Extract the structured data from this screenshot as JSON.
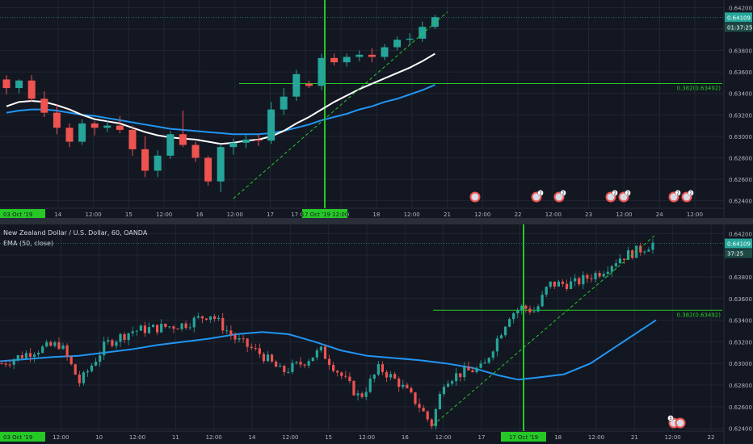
{
  "colors": {
    "background": "#131722",
    "grid": "#222632",
    "up": "#26a69a",
    "down": "#ef5350",
    "ema50": "#2196f3",
    "ema20": "#ffffff",
    "fib": "#26c826",
    "vertical_line": "#26c826",
    "trend_line": "#26c826",
    "axis_text": "#b2b5be",
    "price_tag": "#26a69a",
    "time_tag": "#26c826"
  },
  "legend": {
    "symbol": "New Zealand Dollar / U.S. Dollar, 60, OANDA",
    "indicator": "EMA (50, close)"
  },
  "chart_data": [
    {
      "type": "candlestick",
      "panel": "top",
      "title": "",
      "ylim": [
        0.6236,
        0.6424
      ],
      "y_ticks": [
        "0.64200",
        "0.64000",
        "0.63800",
        "0.63600",
        "0.63400",
        "0.63200",
        "0.63000",
        "0.62800",
        "0.62600",
        "0.62400"
      ],
      "x_ticks": [
        "03 Oct '19",
        "14",
        "12:00",
        "15",
        "12:00",
        "16",
        "12:00",
        "17",
        "17 Oct '19",
        "12:00",
        "18",
        "12:00",
        "21",
        "12:00",
        "22",
        "12:00",
        "23",
        "12:00",
        "24",
        "12:00"
      ],
      "last_price": "0.64109",
      "countdown": "01:37:25",
      "fib_label": "0.382(0.63492)",
      "fib_level": 0.63492,
      "vertical_line_label": "17 Oct '19 12:00",
      "event_badges": [
        "",
        "2",
        "2",
        "2",
        "2",
        "2",
        "2"
      ],
      "candles": [
        [
          0.6353,
          0.6357,
          0.6339,
          0.6345
        ],
        [
          0.6345,
          0.6353,
          0.634,
          0.6352
        ],
        [
          0.6352,
          0.6357,
          0.6332,
          0.6335
        ],
        [
          0.6335,
          0.6342,
          0.6318,
          0.6322
        ],
        [
          0.6322,
          0.633,
          0.6302,
          0.6308
        ],
        [
          0.6308,
          0.6312,
          0.629,
          0.6295
        ],
        [
          0.6295,
          0.6316,
          0.6292,
          0.6312
        ],
        [
          0.6312,
          0.6314,
          0.6301,
          0.6308
        ],
        [
          0.6308,
          0.6315,
          0.6304,
          0.631
        ],
        [
          0.631,
          0.6319,
          0.6303,
          0.6306
        ],
        [
          0.6306,
          0.631,
          0.6282,
          0.6288
        ],
        [
          0.6288,
          0.63,
          0.6262,
          0.6268
        ],
        [
          0.6268,
          0.6287,
          0.6262,
          0.6282
        ],
        [
          0.6282,
          0.6305,
          0.6279,
          0.6302
        ],
        [
          0.6302,
          0.6324,
          0.629,
          0.6292
        ],
        [
          0.6292,
          0.6295,
          0.6276,
          0.628
        ],
        [
          0.628,
          0.6282,
          0.6254,
          0.6258
        ],
        [
          0.6258,
          0.6293,
          0.6248,
          0.629
        ],
        [
          0.629,
          0.6298,
          0.6283,
          0.6294
        ],
        [
          0.6294,
          0.6301,
          0.6289,
          0.6297
        ],
        [
          0.6297,
          0.6302,
          0.6291,
          0.6296
        ],
        [
          0.6296,
          0.6332,
          0.6293,
          0.6325
        ],
        [
          0.6325,
          0.6345,
          0.632,
          0.6337
        ],
        [
          0.6337,
          0.6362,
          0.6333,
          0.6358
        ],
        [
          0.6349,
          0.6352,
          0.6345,
          0.6347
        ],
        [
          0.6347,
          0.6377,
          0.6343,
          0.6373
        ],
        [
          0.6373,
          0.6377,
          0.6366,
          0.6369
        ],
        [
          0.6369,
          0.6377,
          0.6365,
          0.6374
        ],
        [
          0.6374,
          0.638,
          0.637,
          0.6376
        ],
        [
          0.6376,
          0.6382,
          0.6369,
          0.6374
        ],
        [
          0.6374,
          0.6386,
          0.6371,
          0.6383
        ],
        [
          0.6383,
          0.6393,
          0.638,
          0.639
        ],
        [
          0.639,
          0.6396,
          0.6385,
          0.6391
        ],
        [
          0.6391,
          0.6407,
          0.6388,
          0.6402
        ],
        [
          0.6402,
          0.6413,
          0.64,
          0.6411
        ]
      ],
      "ema20": [
        0.6328,
        0.6332,
        0.6333,
        0.6332,
        0.6329,
        0.6325,
        0.632,
        0.6316,
        0.6314,
        0.6312,
        0.6308,
        0.6304,
        0.6301,
        0.6299,
        0.6298,
        0.6297,
        0.6295,
        0.6293,
        0.6294,
        0.6296,
        0.6297,
        0.63,
        0.6305,
        0.6312,
        0.6318,
        0.6325,
        0.6332,
        0.6338,
        0.6344,
        0.6349,
        0.6354,
        0.6359,
        0.6364,
        0.637,
        0.6377
      ],
      "ema50": [
        0.6322,
        0.6324,
        0.6325,
        0.6325,
        0.6324,
        0.6322,
        0.632,
        0.6319,
        0.6317,
        0.6315,
        0.6313,
        0.6311,
        0.6309,
        0.6307,
        0.6306,
        0.6305,
        0.6304,
        0.6303,
        0.6302,
        0.6302,
        0.6302,
        0.6303,
        0.6305,
        0.6308,
        0.6311,
        0.6315,
        0.6318,
        0.6321,
        0.6325,
        0.6328,
        0.6332,
        0.6335,
        0.6339,
        0.6343,
        0.6348
      ]
    },
    {
      "type": "candlestick",
      "panel": "bottom",
      "title": "",
      "ylim": [
        0.6236,
        0.6424
      ],
      "y_ticks": [
        "0.64200",
        "0.64000",
        "0.63800",
        "0.63600",
        "0.63400",
        "0.63200",
        "0.63000",
        "0.62800",
        "0.62600",
        "0.62400"
      ],
      "x_ticks": [
        "03 Oct '19",
        "12:00",
        "10",
        "12:00",
        "11",
        "12:00",
        "14",
        "12:00",
        "15",
        "12:00",
        "16",
        "12:00",
        "17",
        "17 Oct '19",
        "18",
        "12:00",
        "21",
        "12:00",
        "22"
      ],
      "last_price": "0.64109",
      "countdown": "37:25",
      "fib_label": "0.382(0.63492)",
      "fib_level": 0.63492,
      "vertical_line_label": "17 Oct '19",
      "event_badges": [
        "3"
      ],
      "ema50_path": [
        [
          0.0,
          0.6302
        ],
        [
          0.04,
          0.6304
        ],
        [
          0.08,
          0.6306
        ],
        [
          0.12,
          0.6307
        ],
        [
          0.16,
          0.631
        ],
        [
          0.2,
          0.6313
        ],
        [
          0.24,
          0.6317
        ],
        [
          0.28,
          0.632
        ],
        [
          0.32,
          0.6323
        ],
        [
          0.36,
          0.6327
        ],
        [
          0.4,
          0.6329
        ],
        [
          0.44,
          0.6327
        ],
        [
          0.48,
          0.632
        ],
        [
          0.52,
          0.6312
        ],
        [
          0.56,
          0.6307
        ],
        [
          0.6,
          0.6305
        ],
        [
          0.64,
          0.6303
        ],
        [
          0.68,
          0.63
        ],
        [
          0.72,
          0.6296
        ],
        [
          0.76,
          0.6289
        ],
        [
          0.79,
          0.6285
        ],
        [
          0.82,
          0.6287
        ],
        [
          0.86,
          0.629
        ],
        [
          0.9,
          0.63
        ],
        [
          0.93,
          0.6312
        ],
        [
          0.96,
          0.6324
        ],
        [
          1.0,
          0.634
        ]
      ]
    }
  ]
}
